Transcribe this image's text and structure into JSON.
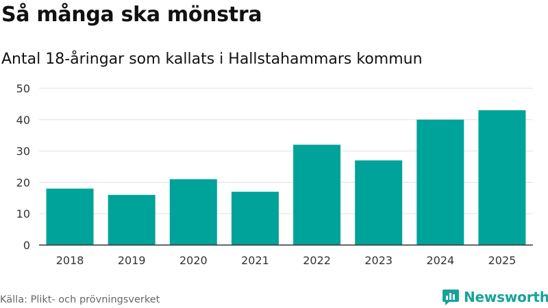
{
  "header": {
    "title": "Så många ska mönstra",
    "subtitle": "Antal 18-åringar som kallats i Hallstahammars kommun"
  },
  "footer": {
    "source": "Källa: Plikt- och prövningsverket",
    "brand": "Newsworthy",
    "brand_icon": "newsworthy-logo-icon",
    "brand_color": "#15a39a"
  },
  "colors": {
    "bar": "#00a399",
    "grid": "#e0e0e0",
    "axis": "#333333",
    "tick_text": "#333333"
  },
  "chart_data": {
    "type": "bar",
    "title": "Så många ska mönstra",
    "subtitle": "Antal 18-åringar som kallats i Hallstahammars kommun",
    "categories": [
      "2018",
      "2019",
      "2020",
      "2021",
      "2022",
      "2023",
      "2024",
      "2025"
    ],
    "values": [
      18,
      16,
      21,
      17,
      32,
      27,
      40,
      43
    ],
    "xlabel": "",
    "ylabel": "",
    "ylim": [
      0,
      50
    ],
    "yticks": [
      0,
      10,
      20,
      30,
      40,
      50
    ],
    "grid": true,
    "legend": "none"
  }
}
